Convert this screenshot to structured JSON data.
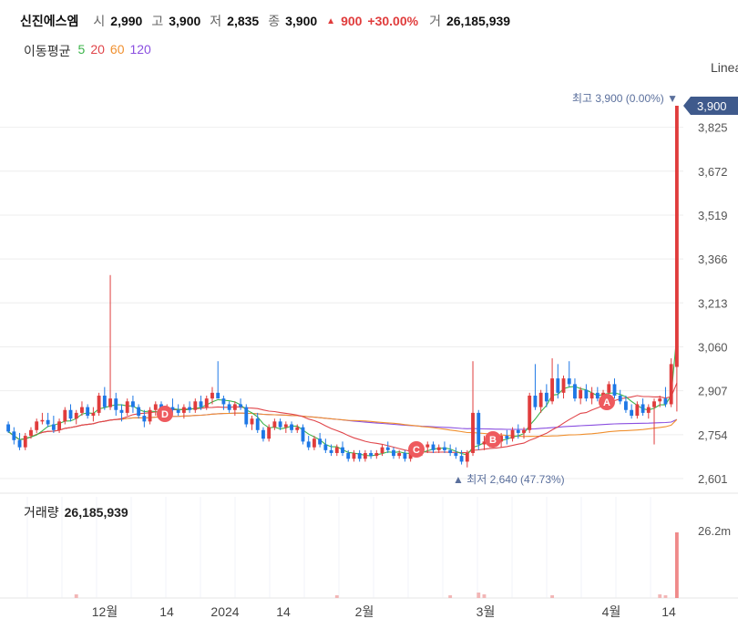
{
  "header": {
    "name": "신진에스엠",
    "open_label": "시",
    "open": "2,990",
    "high_label": "고",
    "high": "3,900",
    "low_label": "저",
    "low": "2,835",
    "close_label": "종",
    "close": "3,900",
    "change_arrow": "▲",
    "change": "900",
    "change_pct": "+30.00%",
    "volume_label": "거",
    "volume": "26,185,939"
  },
  "ma_legend": {
    "title": "이동평균",
    "items": [
      {
        "label": "5",
        "color": "#3cb44b"
      },
      {
        "label": "20",
        "color": "#e0454a"
      },
      {
        "label": "60",
        "color": "#f0902f"
      },
      {
        "label": "120",
        "color": "#8a4fe0"
      }
    ]
  },
  "scale_label": "Linear",
  "price_axis": {
    "ticks": [
      "3,825",
      "3,672",
      "3,519",
      "3,366",
      "3,213",
      "3,060",
      "2,907",
      "2,754",
      "2,601"
    ],
    "current_label": "3,900"
  },
  "annotations": {
    "high": "최고 3,900 (0.00%) ▼",
    "low": "▲ 최저 2,640 (47.73%)",
    "markers": [
      "D",
      "C",
      "B",
      "A"
    ]
  },
  "volume_panel": {
    "title": "거래량",
    "value": "26,185,939",
    "axis_tick": "26.2m"
  },
  "x_axis": {
    "labels": [
      "12월",
      "14",
      "2024",
      "14",
      "2월",
      "3월",
      "4월",
      "14"
    ]
  },
  "colors": {
    "up": "#e03c3c",
    "down": "#1e78e6",
    "axis_badge": "#3f5a8c"
  },
  "chart_data": {
    "type": "candlestick",
    "note_units": "KRW",
    "ylim": [
      2601,
      3900
    ],
    "y_ticks": [
      2601,
      2754,
      2907,
      3060,
      3213,
      3366,
      3519,
      3672,
      3825
    ],
    "ohlc": [
      [
        2790,
        2800,
        2760,
        2765
      ],
      [
        2765,
        2780,
        2720,
        2735
      ],
      [
        2735,
        2760,
        2700,
        2710
      ],
      [
        2710,
        2760,
        2700,
        2750
      ],
      [
        2750,
        2780,
        2740,
        2770
      ],
      [
        2770,
        2810,
        2760,
        2800
      ],
      [
        2800,
        2830,
        2790,
        2805
      ],
      [
        2805,
        2830,
        2780,
        2790
      ],
      [
        2790,
        2820,
        2760,
        2770
      ],
      [
        2770,
        2810,
        2760,
        2800
      ],
      [
        2800,
        2850,
        2790,
        2840
      ],
      [
        2840,
        2860,
        2800,
        2810
      ],
      [
        2810,
        2840,
        2790,
        2830
      ],
      [
        2830,
        2870,
        2820,
        2850
      ],
      [
        2850,
        2860,
        2810,
        2820
      ],
      [
        2820,
        2850,
        2800,
        2830
      ],
      [
        2830,
        2900,
        2820,
        2890
      ],
      [
        2890,
        2920,
        2840,
        2850
      ],
      [
        2850,
        3310,
        2840,
        2880
      ],
      [
        2880,
        2900,
        2820,
        2840
      ],
      [
        2840,
        2860,
        2800,
        2830
      ],
      [
        2830,
        2880,
        2820,
        2870
      ],
      [
        2870,
        2890,
        2830,
        2850
      ],
      [
        2850,
        2860,
        2810,
        2820
      ],
      [
        2820,
        2840,
        2780,
        2800
      ],
      [
        2800,
        2850,
        2790,
        2840
      ],
      [
        2840,
        2870,
        2820,
        2860
      ],
      [
        2860,
        2870,
        2820,
        2830
      ],
      [
        2830,
        2860,
        2810,
        2850
      ],
      [
        2850,
        2880,
        2830,
        2840
      ],
      [
        2840,
        2860,
        2820,
        2830
      ],
      [
        2830,
        2860,
        2810,
        2850
      ],
      [
        2850,
        2870,
        2830,
        2840
      ],
      [
        2840,
        2880,
        2830,
        2870
      ],
      [
        2870,
        2890,
        2840,
        2850
      ],
      [
        2850,
        2890,
        2840,
        2880
      ],
      [
        2880,
        2920,
        2860,
        2900
      ],
      [
        2900,
        3010,
        2880,
        2880
      ],
      [
        2880,
        2890,
        2840,
        2860
      ],
      [
        2860,
        2870,
        2830,
        2840
      ],
      [
        2840,
        2870,
        2820,
        2860
      ],
      [
        2860,
        2880,
        2840,
        2850
      ],
      [
        2850,
        2860,
        2780,
        2790
      ],
      [
        2790,
        2820,
        2770,
        2810
      ],
      [
        2810,
        2830,
        2760,
        2770
      ],
      [
        2770,
        2780,
        2730,
        2740
      ],
      [
        2740,
        2790,
        2730,
        2780
      ],
      [
        2780,
        2810,
        2770,
        2800
      ],
      [
        2800,
        2810,
        2770,
        2780
      ],
      [
        2780,
        2800,
        2760,
        2790
      ],
      [
        2790,
        2800,
        2760,
        2770
      ],
      [
        2770,
        2790,
        2760,
        2780
      ],
      [
        2780,
        2790,
        2720,
        2730
      ],
      [
        2730,
        2750,
        2700,
        2710
      ],
      [
        2710,
        2750,
        2700,
        2740
      ],
      [
        2740,
        2760,
        2710,
        2720
      ],
      [
        2720,
        2740,
        2690,
        2700
      ],
      [
        2700,
        2720,
        2680,
        2690
      ],
      [
        2690,
        2720,
        2680,
        2710
      ],
      [
        2710,
        2730,
        2680,
        2690
      ],
      [
        2690,
        2700,
        2660,
        2670
      ],
      [
        2670,
        2700,
        2660,
        2690
      ],
      [
        2690,
        2700,
        2660,
        2670
      ],
      [
        2670,
        2700,
        2660,
        2690
      ],
      [
        2690,
        2700,
        2670,
        2680
      ],
      [
        2680,
        2700,
        2670,
        2690
      ],
      [
        2690,
        2720,
        2680,
        2710
      ],
      [
        2710,
        2730,
        2690,
        2700
      ],
      [
        2700,
        2710,
        2670,
        2680
      ],
      [
        2680,
        2700,
        2670,
        2690
      ],
      [
        2690,
        2700,
        2660,
        2670
      ],
      [
        2670,
        2710,
        2660,
        2700
      ],
      [
        2700,
        2720,
        2680,
        2690
      ],
      [
        2690,
        2720,
        2680,
        2710
      ],
      [
        2710,
        2730,
        2690,
        2720
      ],
      [
        2720,
        2730,
        2690,
        2700
      ],
      [
        2700,
        2720,
        2690,
        2710
      ],
      [
        2710,
        2730,
        2690,
        2700
      ],
      [
        2700,
        2720,
        2680,
        2690
      ],
      [
        2690,
        2710,
        2670,
        2680
      ],
      [
        2680,
        2700,
        2650,
        2660
      ],
      [
        2660,
        2700,
        2640,
        2690
      ],
      [
        2690,
        3010,
        2680,
        2830
      ],
      [
        2830,
        2840,
        2700,
        2720
      ],
      [
        2720,
        2750,
        2700,
        2730
      ],
      [
        2730,
        2760,
        2710,
        2740
      ],
      [
        2740,
        2760,
        2720,
        2730
      ],
      [
        2730,
        2760,
        2710,
        2750
      ],
      [
        2750,
        2770,
        2720,
        2740
      ],
      [
        2740,
        2780,
        2730,
        2770
      ],
      [
        2770,
        2790,
        2740,
        2760
      ],
      [
        2760,
        2780,
        2740,
        2770
      ],
      [
        2770,
        2900,
        2760,
        2890
      ],
      [
        2890,
        3000,
        2840,
        2850
      ],
      [
        2850,
        2910,
        2830,
        2900
      ],
      [
        2900,
        2930,
        2850,
        2870
      ],
      [
        2870,
        3020,
        2860,
        2950
      ],
      [
        2950,
        3000,
        2880,
        2900
      ],
      [
        2900,
        2960,
        2880,
        2950
      ],
      [
        2950,
        3010,
        2920,
        2930
      ],
      [
        2930,
        2950,
        2870,
        2880
      ],
      [
        2880,
        2920,
        2860,
        2910
      ],
      [
        2910,
        2930,
        2870,
        2880
      ],
      [
        2880,
        2920,
        2860,
        2900
      ],
      [
        2900,
        2920,
        2870,
        2880
      ],
      [
        2880,
        2910,
        2860,
        2900
      ],
      [
        2900,
        2940,
        2880,
        2930
      ],
      [
        2930,
        2950,
        2880,
        2890
      ],
      [
        2890,
        2910,
        2860,
        2870
      ],
      [
        2870,
        2890,
        2830,
        2840
      ],
      [
        2840,
        2860,
        2810,
        2820
      ],
      [
        2820,
        2870,
        2810,
        2860
      ],
      [
        2860,
        2880,
        2820,
        2830
      ],
      [
        2830,
        2860,
        2810,
        2850
      ],
      [
        2850,
        2880,
        2720,
        2870
      ],
      [
        2870,
        2890,
        2850,
        2880
      ],
      [
        2880,
        2920,
        2850,
        2860
      ],
      [
        2860,
        3020,
        2850,
        3000
      ],
      [
        2990,
        3900,
        2835,
        3900
      ]
    ],
    "ma_colors": {
      "ma5": "#3cb44b",
      "ma20": "#e0454a",
      "ma60": "#f0902f",
      "ma120": "#8a4fe0"
    },
    "volume_last": 26185939,
    "high": 3900,
    "low": 2640
  }
}
